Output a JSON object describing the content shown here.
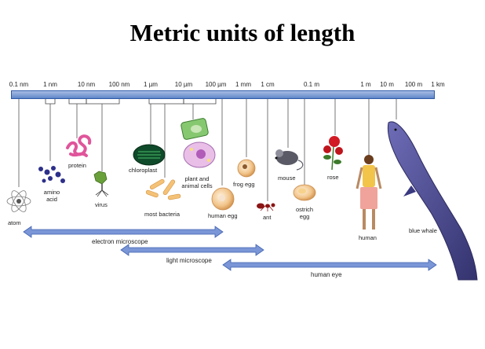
{
  "title": "Metric units of length",
  "scale_ticks": [
    "0.1 nm",
    "1 nm",
    "10 nm",
    "100 nm",
    "1 µm",
    "10 µm",
    "100 µm",
    "1 mm",
    "1 cm",
    "0.1 m",
    "1 m",
    "10 m",
    "100 m",
    "1 km"
  ],
  "objects": {
    "atom": "atom",
    "amino_acid": "amino acid",
    "protein": "protein",
    "virus": "virus",
    "chloroplast": "chloroplast",
    "most_bacteria": "most bacteria",
    "plant_animal_cells": "plant and animal cells",
    "human_egg": "human egg",
    "frog_egg": "frog egg",
    "ant": "ant",
    "mouse": "mouse",
    "ostrich_egg": "ostrich egg",
    "rose": "rose",
    "human": "human",
    "blue_whale": "blue whale"
  },
  "ranges": {
    "electron_microscope": "electron microscope",
    "light_microscope": "light microscope",
    "human_eye": "human eye"
  },
  "colors": {
    "ruler": "#5f86c9",
    "arrow": "#7b96d6",
    "arrow_edge": "#3f62b0",
    "whale": "#4b4a93"
  }
}
